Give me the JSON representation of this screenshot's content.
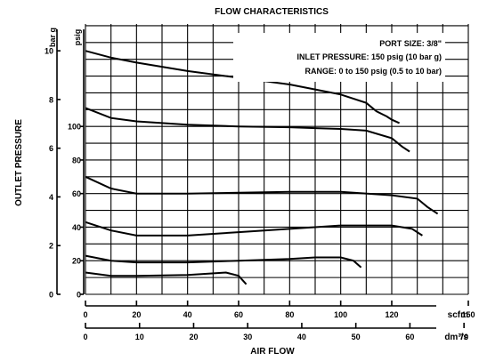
{
  "chart_data": {
    "type": "line",
    "title": "FLOW CHARACTERISTICS",
    "ylabel": "OUTLET PRESSURE",
    "xlabel": "AIR FLOW",
    "annotations": [
      "PORT SIZE: 3/8\"",
      "INLET PRESSURE: 150 psig (10 bar g)",
      "RANGE: 0 to 150 psig (0.5 to 10 bar)"
    ],
    "y_axis_bar": {
      "unit": "bar g",
      "ticks": [
        "0",
        "2",
        "4",
        "6",
        "8",
        "10"
      ],
      "ylim": [
        0,
        11.1
      ]
    },
    "y_axis_psig": {
      "unit": "psig",
      "ticks": [
        "0",
        "20",
        "40",
        "60",
        "80",
        "100"
      ],
      "ylim": [
        0,
        161
      ]
    },
    "x_axis_scfm": {
      "unit": "scfm",
      "ticks": [
        "0",
        "20",
        "40",
        "60",
        "80",
        "100",
        "120",
        "150"
      ],
      "xlim": [
        0,
        150
      ]
    },
    "x_axis_dm3s": {
      "unit": "dm³/s",
      "ticks": [
        "0",
        "10",
        "20",
        "30",
        "40",
        "50",
        "60",
        "70"
      ],
      "xlim": [
        0,
        70.8
      ]
    },
    "grid": true,
    "series": [
      {
        "x": [
          0,
          10,
          20,
          40,
          60,
          80,
          90,
          100,
          110,
          114,
          118,
          120,
          123
        ],
        "y": [
          145,
          141,
          138,
          133,
          129,
          125,
          122,
          119,
          114,
          109,
          106,
          104,
          102
        ]
      },
      {
        "x": [
          0,
          10,
          20,
          40,
          60,
          80,
          90,
          100,
          110,
          120,
          124,
          127
        ],
        "y": [
          111,
          105,
          103,
          101,
          100,
          99.5,
          99,
          98.5,
          97.5,
          93,
          88,
          85
        ]
      },
      {
        "x": [
          0,
          10,
          20,
          40,
          60,
          80,
          100,
          120,
          130,
          134,
          138
        ],
        "y": [
          70,
          63,
          60,
          60,
          60.5,
          61,
          61,
          59,
          57,
          52,
          48
        ]
      },
      {
        "x": [
          0,
          10,
          20,
          40,
          60,
          80,
          100,
          120,
          128,
          132
        ],
        "y": [
          43,
          38,
          35,
          35,
          37,
          39,
          41,
          41,
          39,
          35
        ]
      },
      {
        "x": [
          0,
          10,
          20,
          40,
          60,
          80,
          90,
          100,
          105,
          108
        ],
        "y": [
          23,
          20,
          19,
          19,
          20,
          21,
          22,
          22,
          20,
          16
        ]
      },
      {
        "x": [
          0,
          10,
          20,
          40,
          55,
          60,
          63
        ],
        "y": [
          13,
          11,
          11,
          11.5,
          13,
          11,
          6
        ]
      }
    ]
  }
}
